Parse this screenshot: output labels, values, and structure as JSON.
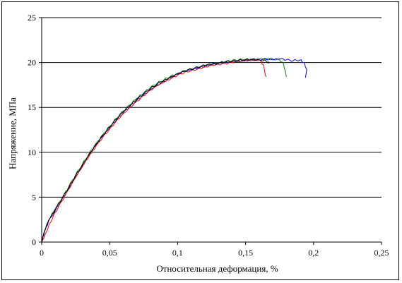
{
  "chart_data": {
    "type": "line",
    "xlabel": "Относительная деформация, %",
    "ylabel": "Напряжение, МПа",
    "xlim": [
      0,
      0.25
    ],
    "ylim": [
      0,
      25
    ],
    "x_ticks": [
      0,
      0.05,
      0.1,
      0.15,
      0.2,
      0.25
    ],
    "x_tick_labels": [
      "0",
      "0,05",
      "0,1",
      "0,15",
      "0,2",
      "0,25"
    ],
    "y_ticks": [
      0,
      5,
      10,
      15,
      20,
      25
    ],
    "y_tick_labels": [
      "0",
      "5",
      "10",
      "15",
      "20",
      "25"
    ],
    "grid": "horizontal major gridlines",
    "legend": "none",
    "series": [
      {
        "color": "#008000",
        "x": [
          0,
          0.002,
          0.005,
          0.01,
          0.015,
          0.02,
          0.025,
          0.03,
          0.035,
          0.04,
          0.045,
          0.05,
          0.055,
          0.06,
          0.065,
          0.07,
          0.075,
          0.08,
          0.085,
          0.09,
          0.095,
          0.1,
          0.105,
          0.11,
          0.115,
          0.12,
          0.125,
          0.13,
          0.135,
          0.14,
          0.145,
          0.15,
          0.155,
          0.16,
          0.165,
          0.17,
          0.175,
          0.178,
          0.18
        ],
        "y": [
          0,
          1.2,
          2.4,
          3.7,
          4.9,
          6.2,
          7.5,
          8.7,
          9.9,
          11.0,
          12.0,
          12.9,
          13.8,
          14.6,
          15.3,
          16.0,
          16.6,
          17.2,
          17.7,
          18.1,
          18.5,
          18.8,
          19.1,
          19.3,
          19.5,
          19.7,
          19.8,
          19.95,
          20.1,
          20.2,
          20.3,
          20.35,
          20.4,
          20.4,
          20.45,
          20.4,
          20.3,
          19.8,
          18.4
        ]
      },
      {
        "color": "#0000ff",
        "x": [
          0,
          0.002,
          0.005,
          0.01,
          0.015,
          0.02,
          0.025,
          0.03,
          0.035,
          0.04,
          0.045,
          0.05,
          0.055,
          0.06,
          0.065,
          0.07,
          0.075,
          0.08,
          0.085,
          0.09,
          0.095,
          0.1,
          0.105,
          0.11,
          0.115,
          0.12,
          0.125,
          0.13,
          0.135,
          0.14,
          0.145,
          0.15,
          0.155,
          0.16,
          0.165,
          0.17,
          0.175,
          0.18,
          0.185,
          0.19,
          0.193,
          0.195,
          0.194
        ],
        "y": [
          0,
          1.1,
          2.3,
          3.5,
          4.8,
          6.0,
          7.3,
          8.5,
          9.7,
          10.8,
          11.8,
          12.7,
          13.6,
          14.4,
          15.1,
          15.8,
          16.4,
          17.0,
          17.5,
          17.9,
          18.3,
          18.7,
          19.0,
          19.2,
          19.4,
          19.6,
          19.8,
          19.9,
          20.0,
          20.1,
          20.2,
          20.25,
          20.3,
          20.3,
          20.35,
          20.3,
          20.4,
          20.3,
          20.2,
          20.3,
          20.0,
          19.2,
          18.3
        ]
      },
      {
        "color": "#ff0000",
        "x": [
          0,
          0.003,
          0.006,
          0.01,
          0.015,
          0.02,
          0.025,
          0.03,
          0.035,
          0.04,
          0.045,
          0.05,
          0.055,
          0.06,
          0.065,
          0.07,
          0.075,
          0.08,
          0.085,
          0.09,
          0.095,
          0.1,
          0.105,
          0.11,
          0.115,
          0.12,
          0.125,
          0.13,
          0.135,
          0.14,
          0.145,
          0.15,
          0.155,
          0.16,
          0.163,
          0.165
        ],
        "y": [
          0,
          1.0,
          2.1,
          3.3,
          4.6,
          5.9,
          7.2,
          8.4,
          9.6,
          10.7,
          11.7,
          12.6,
          13.5,
          14.3,
          15.0,
          15.7,
          16.3,
          16.9,
          17.4,
          17.8,
          18.2,
          18.6,
          18.9,
          19.1,
          19.3,
          19.5,
          19.7,
          19.8,
          19.9,
          20.0,
          20.1,
          20.2,
          20.25,
          20.3,
          19.8,
          18.4
        ]
      },
      {
        "color": "#000000",
        "x": [
          0,
          0.002,
          0.005,
          0.01,
          0.015,
          0.02,
          0.025,
          0.03,
          0.035,
          0.04,
          0.045,
          0.05,
          0.055,
          0.06,
          0.065,
          0.07,
          0.075,
          0.08,
          0.085,
          0.09,
          0.095,
          0.1,
          0.105,
          0.11,
          0.115,
          0.12,
          0.125,
          0.13,
          0.135,
          0.14,
          0.145,
          0.15,
          0.155,
          0.16,
          0.165,
          0.167
        ],
        "y": [
          0,
          1.15,
          2.35,
          3.6,
          4.85,
          6.1,
          7.4,
          8.6,
          9.8,
          10.9,
          11.9,
          12.8,
          13.7,
          14.5,
          15.2,
          15.9,
          16.5,
          17.1,
          17.6,
          18.0,
          18.4,
          18.75,
          19.05,
          19.25,
          19.45,
          19.65,
          19.8,
          19.9,
          20.05,
          20.15,
          20.25,
          20.3,
          20.35,
          20.3,
          20.2,
          19.9
        ]
      }
    ]
  }
}
